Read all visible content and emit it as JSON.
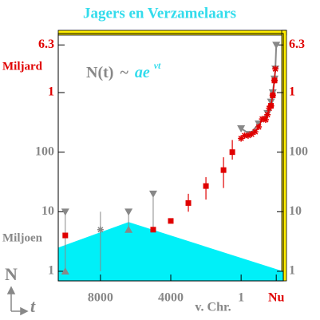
{
  "chart_data": {
    "type": "scatter",
    "title": "Jagers en Verzamelaars",
    "formula": {
      "lhs": "N(t)",
      "op": "~",
      "rhs": "ae",
      "exponent": "νt"
    },
    "ylabel": "N",
    "xlabel": "t",
    "annotations": {
      "upper": "Miljard",
      "lower": "Miljoen",
      "era": "v. Chr."
    },
    "log_y": true,
    "xlim": [
      -10400,
      2400
    ],
    "ylim": [
      0.69,
      9800
    ],
    "xticks": [
      {
        "value": -8000,
        "label": "8000"
      },
      {
        "value": -4000,
        "label": "4000"
      },
      {
        "value": 1,
        "label": "1"
      },
      {
        "value": 2000,
        "label": "Nu"
      }
    ],
    "xtick_colors": [
      "#888888",
      "#888888",
      "#888888",
      "#e00000"
    ],
    "yticks": [
      1,
      10,
      100,
      {
        "value": 1000,
        "label": "1"
      },
      {
        "value": 6300,
        "label": "6.3"
      }
    ],
    "ytick_colors": [
      "#888888",
      "#888888",
      "#888888",
      "#e00000",
      "#e00000"
    ],
    "area": {
      "color": "#00f0f8",
      "x": [
        -10400,
        -6400,
        2400
      ],
      "values": [
        2.5,
        6.7,
        1
      ]
    },
    "squares": {
      "color": "#e00000",
      "x": [
        -10000,
        -5000,
        -4000,
        -3000,
        -2000,
        -1000,
        -500,
        1700,
        1800,
        1900
      ],
      "values": [
        4,
        5,
        7,
        14,
        27,
        50,
        100,
        600,
        900,
        1600
      ],
      "error_lo": [
        null,
        null,
        null,
        10,
        16,
        25,
        75,
        null,
        null,
        null
      ],
      "error_hi": [
        null,
        null,
        null,
        20,
        38,
        82,
        160,
        null,
        null,
        null
      ]
    },
    "stars": {
      "color": "#e00000",
      "x": [
        0,
        200,
        400,
        600,
        800,
        1000,
        1200,
        1300,
        1400,
        1500,
        1600,
        1700,
        1800,
        1900,
        1950
      ],
      "values": [
        170,
        190,
        190,
        200,
        220,
        265,
        360,
        360,
        350,
        425,
        545,
        600,
        900,
        1600,
        2500
      ]
    },
    "upper_line": {
      "color": "#888888",
      "x": [
        0,
        500,
        1000,
        1500,
        1700,
        1800,
        1900,
        1950,
        2000
      ],
      "values": [
        250,
        200,
        300,
        450,
        700,
        1000,
        1700,
        2500,
        6300
      ]
    },
    "upper_points": {
      "color": "#888888",
      "x": [
        -10000,
        -6400,
        -5000
      ],
      "values": [
        10,
        10,
        20
      ]
    },
    "lower_points": {
      "color": "#888888",
      "x": [
        -10000,
        -6400
      ],
      "values": [
        1,
        5
      ]
    },
    "mid_points": {
      "color": "#888888",
      "x": [
        -8000
      ],
      "values": [
        5
      ]
    },
    "ranges": {
      "color": "#888888",
      "x": [
        -10000,
        -8000,
        -6400,
        -5000
      ],
      "lo": [
        1,
        1,
        5,
        5
      ],
      "hi": [
        10,
        10,
        10,
        20
      ]
    }
  }
}
